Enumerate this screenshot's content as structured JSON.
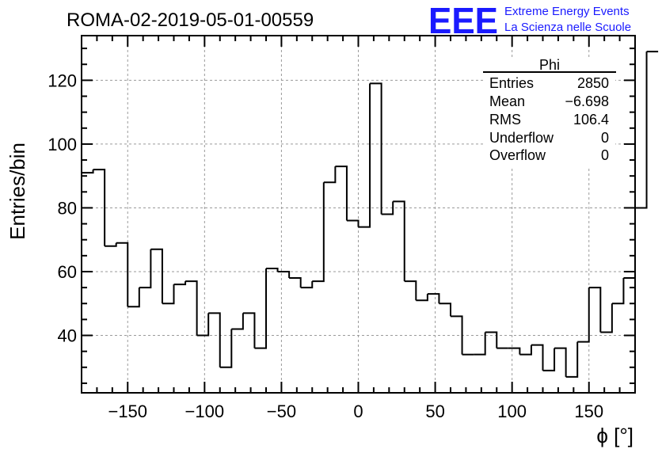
{
  "header": {
    "title": "ROMA-02-2019-05-01-00559",
    "logo_mark": "EEE",
    "logo_line1": "Extreme Energy Events",
    "logo_line2": "La Scienza nelle Scuole",
    "logo_color": "#1a1aff"
  },
  "stats_box": {
    "name": "Phi",
    "rows": [
      {
        "label": "Entries",
        "value": "2850"
      },
      {
        "label": "Mean",
        "value": "−6.698"
      },
      {
        "label": "RMS",
        "value": "106.4"
      },
      {
        "label": "Underflow",
        "value": "0"
      },
      {
        "label": "Overflow",
        "value": "0"
      }
    ]
  },
  "chart_data": {
    "type": "histogram",
    "xlabel": "ϕ [°]",
    "ylabel": "Entries/bin",
    "xlim": [
      -180,
      180
    ],
    "ylim": [
      22,
      134
    ],
    "grid": true,
    "bin_edges_start": -180,
    "bin_width": 7.5,
    "values": [
      91,
      92,
      68,
      69,
      49,
      55,
      67,
      50,
      56,
      57,
      40,
      47,
      30,
      42,
      47,
      36,
      61,
      60,
      58,
      55,
      57,
      88,
      93,
      76,
      74,
      119,
      78,
      82,
      57,
      51,
      53,
      50,
      46,
      34,
      34,
      41,
      36,
      36,
      34,
      37,
      29,
      36,
      27,
      38,
      55,
      41,
      50,
      58,
      80,
      129
    ],
    "x_ticks": [
      -150,
      -100,
      -50,
      0,
      50,
      100,
      150
    ],
    "x_tick_labels": [
      "−150",
      "−100",
      "−50",
      "0",
      "50",
      "100",
      "150"
    ],
    "y_ticks": [
      40,
      60,
      80,
      100,
      120
    ],
    "y_tick_labels": [
      "40",
      "60",
      "80",
      "100",
      "120"
    ]
  }
}
